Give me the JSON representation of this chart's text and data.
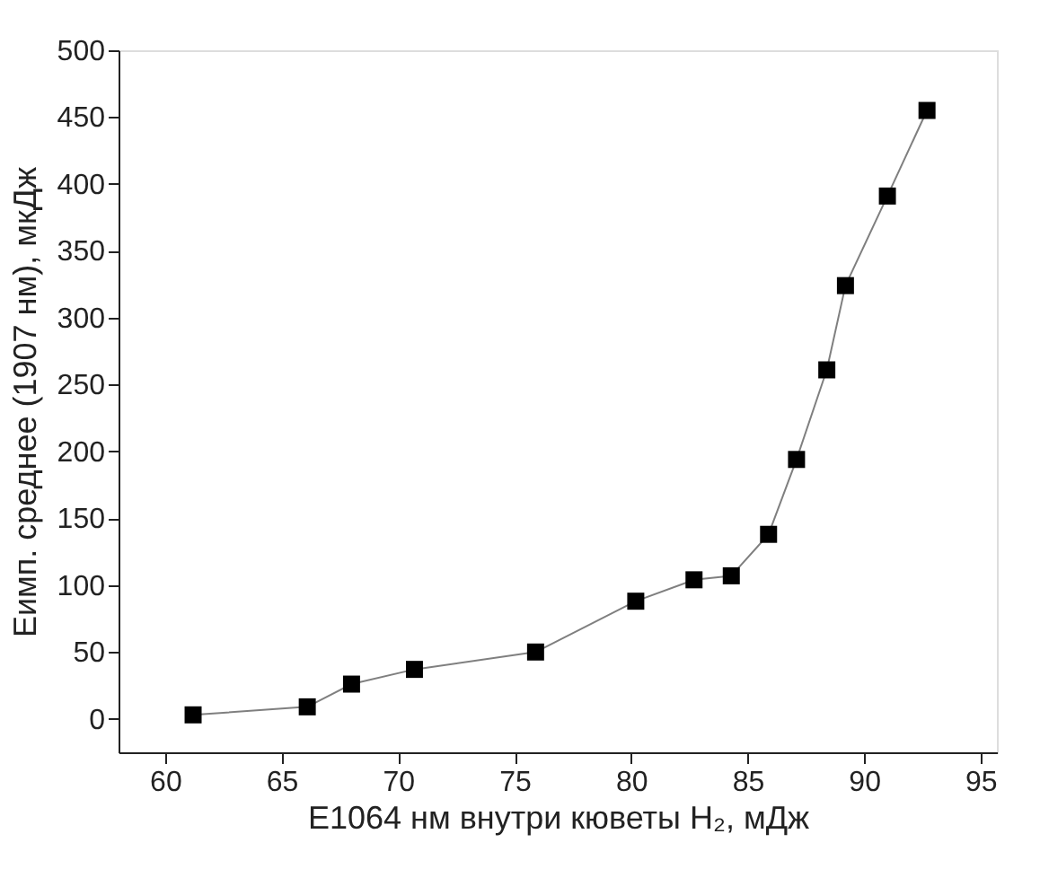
{
  "chart_data": {
    "type": "line",
    "xlabel": "E1064 нм внутри кюветы H₂, мДж",
    "ylabel": "Eимп. среднее (1907 нм), мкДж",
    "x": [
      61.2,
      66.1,
      68.0,
      70.7,
      75.9,
      80.2,
      82.7,
      84.3,
      85.9,
      87.1,
      88.4,
      89.2,
      91.0,
      92.7
    ],
    "series": [
      {
        "color": "#000000",
        "values": [
          3,
          9,
          26,
          37,
          50,
          88,
          104,
          107,
          138,
          194,
          261,
          324,
          391,
          455
        ]
      }
    ],
    "marker": "square",
    "line_style": "solid",
    "xlim": [
      58,
      95.7
    ],
    "xticks": [
      60,
      65,
      70,
      75,
      80,
      85,
      90,
      95
    ],
    "ylim": [
      -25,
      500
    ],
    "yticks": [
      0,
      50,
      100,
      150,
      200,
      250,
      300,
      350,
      400,
      450,
      500
    ],
    "grid": false
  }
}
